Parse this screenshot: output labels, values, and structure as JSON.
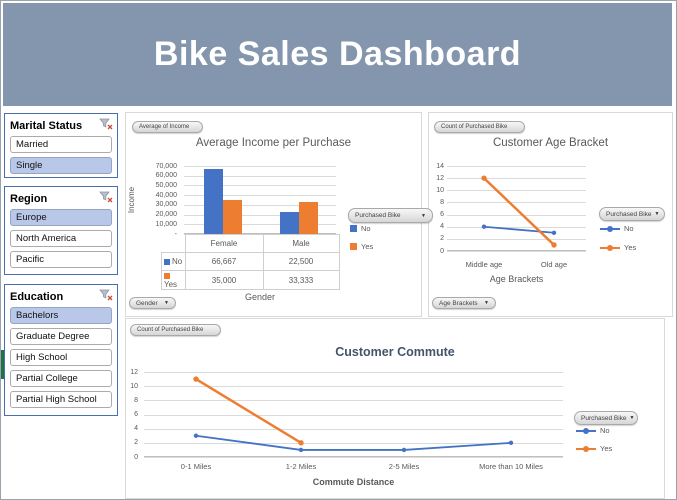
{
  "header": {
    "title": "Bike Sales Dashboard",
    "bg": "#8496ae",
    "text_color": "#ffffff"
  },
  "ui": {
    "dropdown_arrow": "▼",
    "icons": {
      "clear_filter": "funnel-with-red-x"
    }
  },
  "colors": {
    "series_no": "#4472c4",
    "series_yes": "#ed7d31",
    "selected_slicer_item": "#b9c7e9",
    "header_bg": "#8496ae",
    "accent_green": "#217346"
  },
  "slicers": [
    {
      "title": "Marital Status",
      "items": [
        {
          "label": "Married",
          "selected": false
        },
        {
          "label": "Single",
          "selected": true
        }
      ]
    },
    {
      "title": "Region",
      "items": [
        {
          "label": "Europe",
          "selected": true
        },
        {
          "label": "North America",
          "selected": false
        },
        {
          "label": "Pacific",
          "selected": false
        }
      ]
    },
    {
      "title": "Education",
      "items": [
        {
          "label": "Bachelors",
          "selected": true
        },
        {
          "label": "Graduate Degree",
          "selected": false
        },
        {
          "label": "High School",
          "selected": false
        },
        {
          "label": "Partial College",
          "selected": false
        },
        {
          "label": "Partial High School",
          "selected": false
        }
      ]
    }
  ],
  "chart_data": [
    {
      "id": "income",
      "type": "bar",
      "title": "Average Income per Purchase",
      "value_button": "Average of Income",
      "field_buttons": [
        "Gender",
        "Purchased Bike"
      ],
      "categories": [
        "Female",
        "Male"
      ],
      "series": [
        {
          "name": "No",
          "color": "#4472c4",
          "values": [
            66667,
            22500
          ]
        },
        {
          "name": "Yes",
          "color": "#ed7d31",
          "values": [
            35000,
            33333
          ]
        }
      ],
      "table_rows": [
        [
          "66,667",
          "22,500"
        ],
        [
          "35,000",
          "33,333"
        ]
      ],
      "xlabel": "Gender",
      "ylabel": "Income",
      "ylim": [
        0,
        70000
      ],
      "yticks": [
        "70,000",
        "60,000",
        "50,000",
        "40,000",
        "30,000",
        "20,000",
        "10,000",
        "-"
      ],
      "grid": true,
      "legend_position": "right"
    },
    {
      "id": "age",
      "type": "line",
      "title": "Customer Age Bracket",
      "value_button": "Count of Purchased Bike",
      "field_buttons": [
        "Age Brackets",
        "Purchased Bike"
      ],
      "categories": [
        "Middle age",
        "Old age"
      ],
      "series": [
        {
          "name": "No",
          "color": "#4472c4",
          "values": [
            4,
            3
          ]
        },
        {
          "name": "Yes",
          "color": "#ed7d31",
          "values": [
            12,
            1
          ]
        }
      ],
      "xlabel": "Age Brackets",
      "ylim": [
        0,
        14
      ],
      "yticks": [
        "14",
        "12",
        "10",
        "8",
        "6",
        "4",
        "2",
        "0"
      ],
      "grid": true,
      "legend_position": "right"
    },
    {
      "id": "commute",
      "type": "line",
      "title": "Customer Commute",
      "value_button": "Count of Purchased Bike",
      "field_buttons": [
        "Purchased Bike"
      ],
      "categories": [
        "0-1 Miles",
        "1-2 Miles",
        "2-5 Miles",
        "More than 10 Miles"
      ],
      "series": [
        {
          "name": "No",
          "color": "#4472c4",
          "values": [
            3,
            1,
            1,
            2
          ]
        },
        {
          "name": "Yes",
          "color": "#ed7d31",
          "values": [
            11,
            2,
            null,
            null
          ]
        }
      ],
      "xlabel": "Commute Distance",
      "ylim": [
        0,
        12
      ],
      "yticks": [
        "12",
        "10",
        "8",
        "6",
        "4",
        "2",
        "0"
      ],
      "grid": true,
      "legend_position": "right"
    }
  ]
}
